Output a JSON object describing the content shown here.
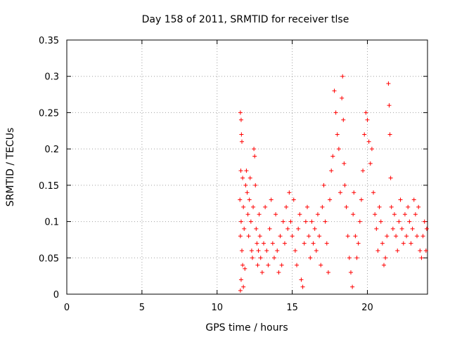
{
  "chart_data": {
    "type": "scatter",
    "title": "Day 158 of 2011, SRMTID for receiver tlse",
    "xlabel": "GPS time / hours",
    "ylabel": "SRMTID / TECUs",
    "xlim": [
      0,
      24
    ],
    "ylim": [
      0,
      0.35
    ],
    "x_ticks": [
      0,
      5,
      10,
      15,
      20
    ],
    "x_tick_labels": [
      "0",
      "5",
      "10",
      "15",
      "20"
    ],
    "y_ticks": [
      0,
      0.05,
      0.1,
      0.15,
      0.2,
      0.25,
      0.3,
      0.35
    ],
    "y_tick_labels": [
      "0",
      "0.05",
      "0.1",
      "0.15",
      "0.2",
      "0.25",
      "0.3",
      "0.35"
    ],
    "grid": true,
    "marker": "+",
    "series_color": "#ff0000",
    "points": [
      [
        11.55,
        0.25
      ],
      [
        11.6,
        0.24
      ],
      [
        11.62,
        0.22
      ],
      [
        11.65,
        0.21
      ],
      [
        11.58,
        0.17
      ],
      [
        11.7,
        0.16
      ],
      [
        11.52,
        0.13
      ],
      [
        11.75,
        0.12
      ],
      [
        11.6,
        0.1
      ],
      [
        11.8,
        0.09
      ],
      [
        11.55,
        0.08
      ],
      [
        11.65,
        0.06
      ],
      [
        11.7,
        0.04
      ],
      [
        11.6,
        0.02
      ],
      [
        11.75,
        0.01
      ],
      [
        11.55,
        0.005
      ],
      [
        11.85,
        0.035
      ],
      [
        11.9,
        0.15
      ],
      [
        11.95,
        0.17
      ],
      [
        12.0,
        0.14
      ],
      [
        12.05,
        0.11
      ],
      [
        12.1,
        0.08
      ],
      [
        12.15,
        0.13
      ],
      [
        12.2,
        0.16
      ],
      [
        12.25,
        0.1
      ],
      [
        12.3,
        0.06
      ],
      [
        12.35,
        0.05
      ],
      [
        12.4,
        0.12
      ],
      [
        12.45,
        0.2
      ],
      [
        12.5,
        0.19
      ],
      [
        12.55,
        0.15
      ],
      [
        12.6,
        0.09
      ],
      [
        12.65,
        0.07
      ],
      [
        12.7,
        0.04
      ],
      [
        12.75,
        0.06
      ],
      [
        12.8,
        0.11
      ],
      [
        12.85,
        0.08
      ],
      [
        12.9,
        0.05
      ],
      [
        13.0,
        0.03
      ],
      [
        13.1,
        0.07
      ],
      [
        13.2,
        0.12
      ],
      [
        13.3,
        0.06
      ],
      [
        13.4,
        0.04
      ],
      [
        13.5,
        0.09
      ],
      [
        13.6,
        0.13
      ],
      [
        13.7,
        0.07
      ],
      [
        13.8,
        0.05
      ],
      [
        13.9,
        0.11
      ],
      [
        14.0,
        0.06
      ],
      [
        14.1,
        0.03
      ],
      [
        14.2,
        0.08
      ],
      [
        14.3,
        0.04
      ],
      [
        14.4,
        0.1
      ],
      [
        14.5,
        0.07
      ],
      [
        14.6,
        0.12
      ],
      [
        14.7,
        0.09
      ],
      [
        14.8,
        0.14
      ],
      [
        14.9,
        0.1
      ],
      [
        15.0,
        0.08
      ],
      [
        15.1,
        0.13
      ],
      [
        15.2,
        0.06
      ],
      [
        15.3,
        0.04
      ],
      [
        15.4,
        0.09
      ],
      [
        15.5,
        0.11
      ],
      [
        15.6,
        0.02
      ],
      [
        15.7,
        0.01
      ],
      [
        15.8,
        0.07
      ],
      [
        15.9,
        0.1
      ],
      [
        16.0,
        0.12
      ],
      [
        16.1,
        0.08
      ],
      [
        16.2,
        0.05
      ],
      [
        16.3,
        0.1
      ],
      [
        16.4,
        0.07
      ],
      [
        16.5,
        0.09
      ],
      [
        16.6,
        0.06
      ],
      [
        16.7,
        0.11
      ],
      [
        16.8,
        0.08
      ],
      [
        16.9,
        0.04
      ],
      [
        17.0,
        0.12
      ],
      [
        17.1,
        0.15
      ],
      [
        17.2,
        0.1
      ],
      [
        17.3,
        0.07
      ],
      [
        17.4,
        0.03
      ],
      [
        17.5,
        0.13
      ],
      [
        17.6,
        0.17
      ],
      [
        17.7,
        0.19
      ],
      [
        17.8,
        0.28
      ],
      [
        17.9,
        0.25
      ],
      [
        18.0,
        0.22
      ],
      [
        18.1,
        0.2
      ],
      [
        18.2,
        0.14
      ],
      [
        18.3,
        0.27
      ],
      [
        18.35,
        0.3
      ],
      [
        18.4,
        0.24
      ],
      [
        18.45,
        0.18
      ],
      [
        18.5,
        0.15
      ],
      [
        18.6,
        0.12
      ],
      [
        18.7,
        0.08
      ],
      [
        18.8,
        0.05
      ],
      [
        18.9,
        0.03
      ],
      [
        19.0,
        0.01
      ],
      [
        19.05,
        0.11
      ],
      [
        19.1,
        0.14
      ],
      [
        19.2,
        0.08
      ],
      [
        19.3,
        0.05
      ],
      [
        19.4,
        0.07
      ],
      [
        19.5,
        0.1
      ],
      [
        19.6,
        0.13
      ],
      [
        19.7,
        0.17
      ],
      [
        19.8,
        0.22
      ],
      [
        19.9,
        0.25
      ],
      [
        20.0,
        0.24
      ],
      [
        20.1,
        0.21
      ],
      [
        20.2,
        0.18
      ],
      [
        20.3,
        0.2
      ],
      [
        20.4,
        0.14
      ],
      [
        20.5,
        0.11
      ],
      [
        20.6,
        0.09
      ],
      [
        20.7,
        0.06
      ],
      [
        20.8,
        0.12
      ],
      [
        20.9,
        0.1
      ],
      [
        21.0,
        0.07
      ],
      [
        21.1,
        0.04
      ],
      [
        21.2,
        0.05
      ],
      [
        21.3,
        0.08
      ],
      [
        21.4,
        0.29
      ],
      [
        21.45,
        0.26
      ],
      [
        21.5,
        0.22
      ],
      [
        21.55,
        0.16
      ],
      [
        21.6,
        0.12
      ],
      [
        21.7,
        0.09
      ],
      [
        21.8,
        0.11
      ],
      [
        21.9,
        0.08
      ],
      [
        22.0,
        0.06
      ],
      [
        22.1,
        0.1
      ],
      [
        22.2,
        0.13
      ],
      [
        22.3,
        0.09
      ],
      [
        22.4,
        0.07
      ],
      [
        22.5,
        0.11
      ],
      [
        22.6,
        0.08
      ],
      [
        22.7,
        0.12
      ],
      [
        22.8,
        0.1
      ],
      [
        22.9,
        0.07
      ],
      [
        23.0,
        0.09
      ],
      [
        23.1,
        0.13
      ],
      [
        23.2,
        0.11
      ],
      [
        23.3,
        0.08
      ],
      [
        23.4,
        0.12
      ],
      [
        23.5,
        0.06
      ],
      [
        23.6,
        0.05
      ],
      [
        23.7,
        0.08
      ],
      [
        23.8,
        0.1
      ],
      [
        23.9,
        0.06
      ],
      [
        23.95,
        0.09
      ]
    ]
  }
}
